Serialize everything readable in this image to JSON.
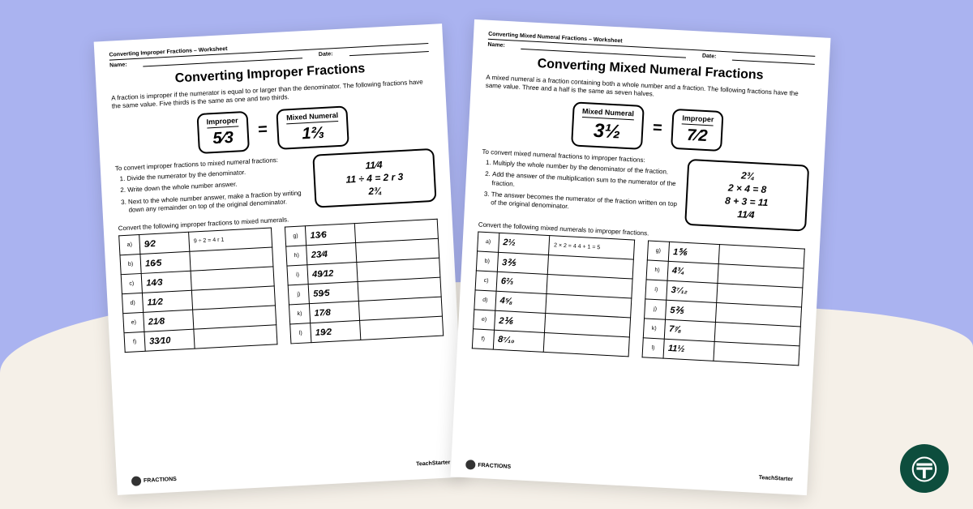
{
  "left": {
    "header": "Converting Improper Fractions – Worksheet",
    "name": "Name:",
    "date": "Date:",
    "title": "Converting Improper Fractions",
    "intro": "A fraction is improper if the numerator is equal to or larger than the denominator. The following fractions have the same value. Five thirds is the same as one and two thirds.",
    "box1_lbl": "Improper",
    "box1_frac": "5⁄3",
    "box2_lbl": "Mixed Numeral",
    "box2_frac": "1⅔",
    "steps_intro": "To convert improper fractions to mixed numeral fractions:",
    "steps": [
      "Divide the numerator by the denominator.",
      "Write down the whole number answer.",
      "Next to the whole number answer, make a fraction by writing down any remainder on top of the original denominator."
    ],
    "diag": [
      "11⁄4",
      "11 ÷ 4 = 2 r 3",
      "2¾"
    ],
    "table_lbl": "Convert the following improper fractions to mixed numerals.",
    "t1": [
      [
        "a)",
        "9⁄2",
        "9 ÷ 2 = 4 r 1"
      ],
      [
        "b)",
        "16⁄5",
        ""
      ],
      [
        "c)",
        "14⁄3",
        ""
      ],
      [
        "d)",
        "11⁄2",
        ""
      ],
      [
        "e)",
        "21⁄8",
        ""
      ],
      [
        "f)",
        "33⁄10",
        ""
      ]
    ],
    "t2": [
      [
        "g)",
        "13⁄6",
        ""
      ],
      [
        "h)",
        "23⁄4",
        ""
      ],
      [
        "i)",
        "49⁄12",
        ""
      ],
      [
        "j)",
        "59⁄5",
        ""
      ],
      [
        "k)",
        "17⁄8",
        ""
      ],
      [
        "l)",
        "19⁄2",
        ""
      ]
    ],
    "footer_l": "FRACTIONS",
    "footer_r": "TeachStarter"
  },
  "right": {
    "header": "Converting Mixed Numeral Fractions – Worksheet",
    "name": "Name:",
    "date": "Date:",
    "title": "Converting Mixed Numeral Fractions",
    "intro": "A mixed numeral is a fraction containing both a whole number and a fraction. The following fractions have the same value. Three and a half is the same as seven halves.",
    "box1_lbl": "Mixed Numeral",
    "box1_frac": "3½",
    "box2_lbl": "Improper",
    "box2_frac": "7⁄2",
    "steps_intro": "To convert mixed numeral fractions to improper fractions:",
    "steps": [
      "Multiply the whole number by the denominator of the fraction.",
      "Add the answer of the multiplication sum to the numerator of the fraction.",
      "The answer becomes the numerator of the fraction written on top of the original denominator."
    ],
    "diag": [
      "2¾",
      "2 × 4 = 8",
      "8 + 3 = 11",
      "11⁄4"
    ],
    "table_lbl": "Convert the following mixed numerals to improper fractions.",
    "t1": [
      [
        "a)",
        "2½",
        "2 × 2 = 4\n4 + 1 = 5"
      ],
      [
        "b)",
        "3⅖",
        ""
      ],
      [
        "c)",
        "6⅔",
        ""
      ],
      [
        "d)",
        "4⅝",
        ""
      ],
      [
        "e)",
        "2⅙",
        ""
      ],
      [
        "f)",
        "8⁷⁄₁₀",
        ""
      ]
    ],
    "t2": [
      [
        "g)",
        "1⅚",
        ""
      ],
      [
        "h)",
        "4¾",
        ""
      ],
      [
        "i)",
        "3⁷⁄₁₂",
        ""
      ],
      [
        "j)",
        "5⅖",
        ""
      ],
      [
        "k)",
        "7⅞",
        ""
      ],
      [
        "l)",
        "11½",
        ""
      ]
    ],
    "footer_l": "FRACTIONS",
    "footer_r": "TeachStarter"
  },
  "colors": {
    "bg": "#aab3f0",
    "wave": "#f5f0e8",
    "logo": "#0d4d3d"
  }
}
